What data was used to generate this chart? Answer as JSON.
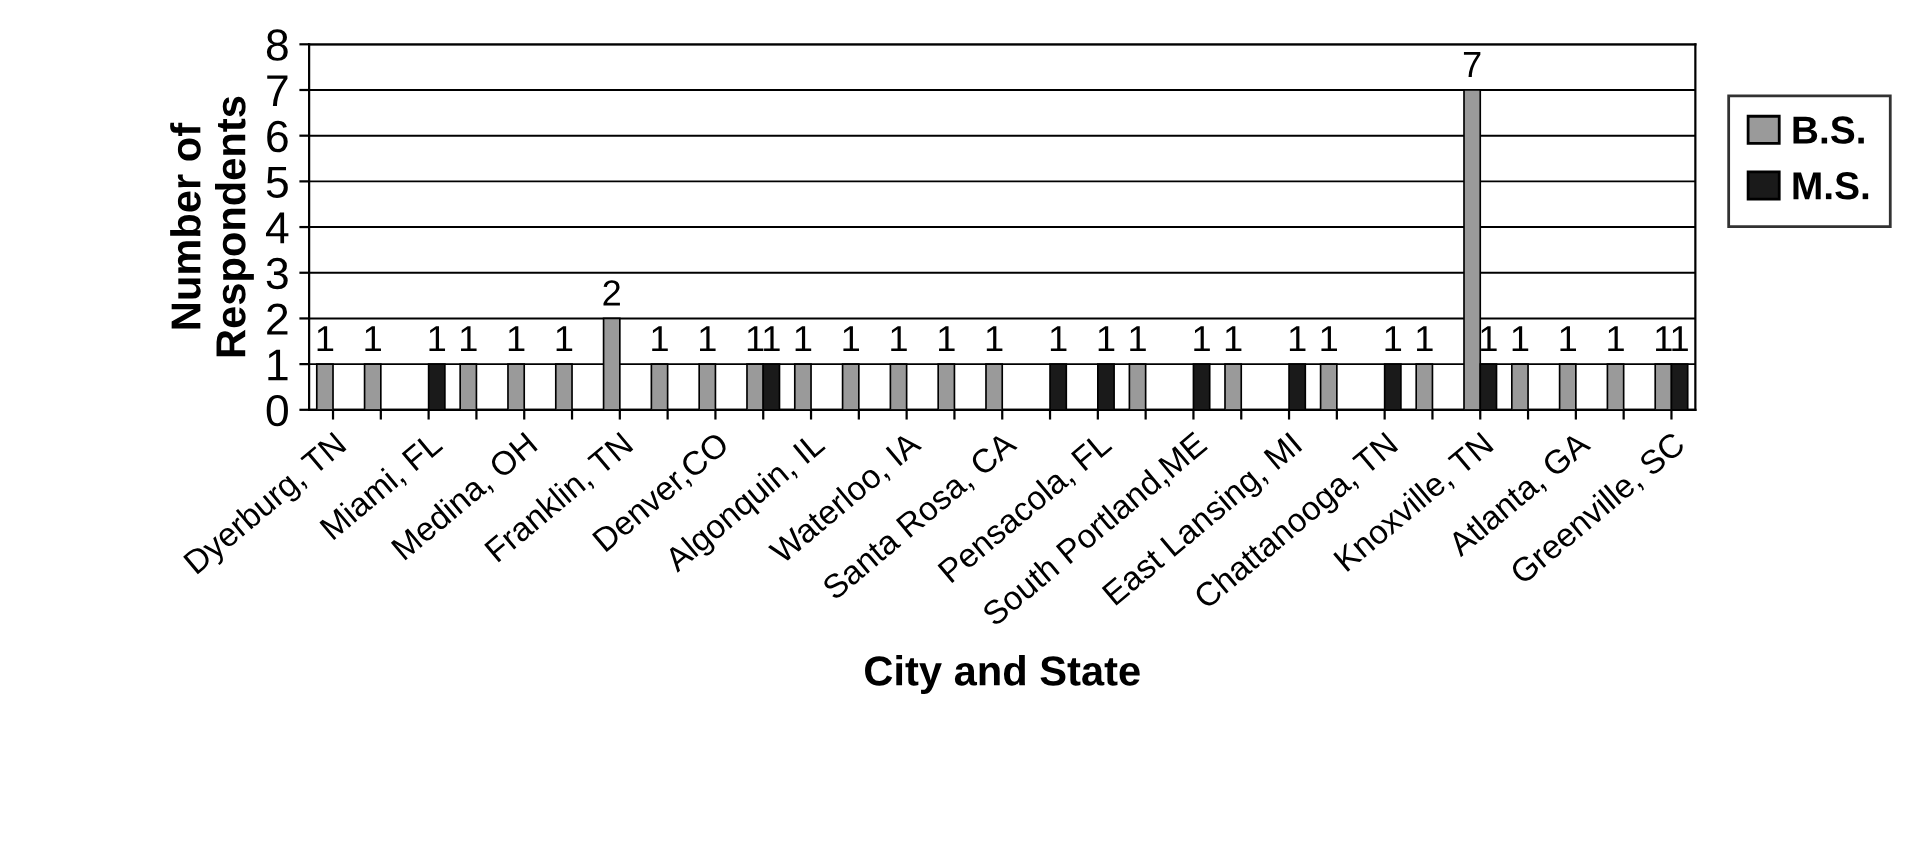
{
  "chart_data": {
    "type": "bar",
    "xlabel": "City and State",
    "ylabel": "Number of\nRespondents",
    "categories": [
      "Dyerburg, TN",
      null,
      "Miami, FL",
      null,
      "Medina, OH",
      null,
      "Franklin, TN",
      null,
      "Denver,CO",
      null,
      "Algonquin, IL",
      null,
      "Waterloo, IA",
      null,
      "Santa Rosa, CA",
      null,
      "Pensacola, FL",
      null,
      "South Portland,ME",
      null,
      "East Lansing, MI",
      null,
      "Chattanooga, TN",
      null,
      "Knoxville, TN",
      null,
      "Atlanta, GA",
      null,
      "Greenville, SC"
    ],
    "series": [
      {
        "name": "B.S.",
        "color": "#9a9a9a",
        "values": [
          1,
          1,
          null,
          1,
          1,
          1,
          2,
          1,
          1,
          1,
          1,
          1,
          1,
          1,
          1,
          null,
          null,
          1,
          null,
          1,
          null,
          1,
          null,
          1,
          7,
          1,
          1,
          1,
          1
        ]
      },
      {
        "name": "M.S.",
        "color": "#1a1a1a",
        "values": [
          null,
          null,
          1,
          null,
          null,
          null,
          null,
          null,
          null,
          1,
          null,
          null,
          null,
          null,
          null,
          1,
          1,
          null,
          1,
          null,
          1,
          null,
          1,
          null,
          1,
          null,
          null,
          null,
          1
        ]
      }
    ],
    "ylim": [
      0,
      8
    ],
    "yticks": [
      0,
      1,
      2,
      3,
      4,
      5,
      6,
      7,
      8
    ],
    "grid": "y",
    "legend": "right",
    "data_labels": true
  }
}
